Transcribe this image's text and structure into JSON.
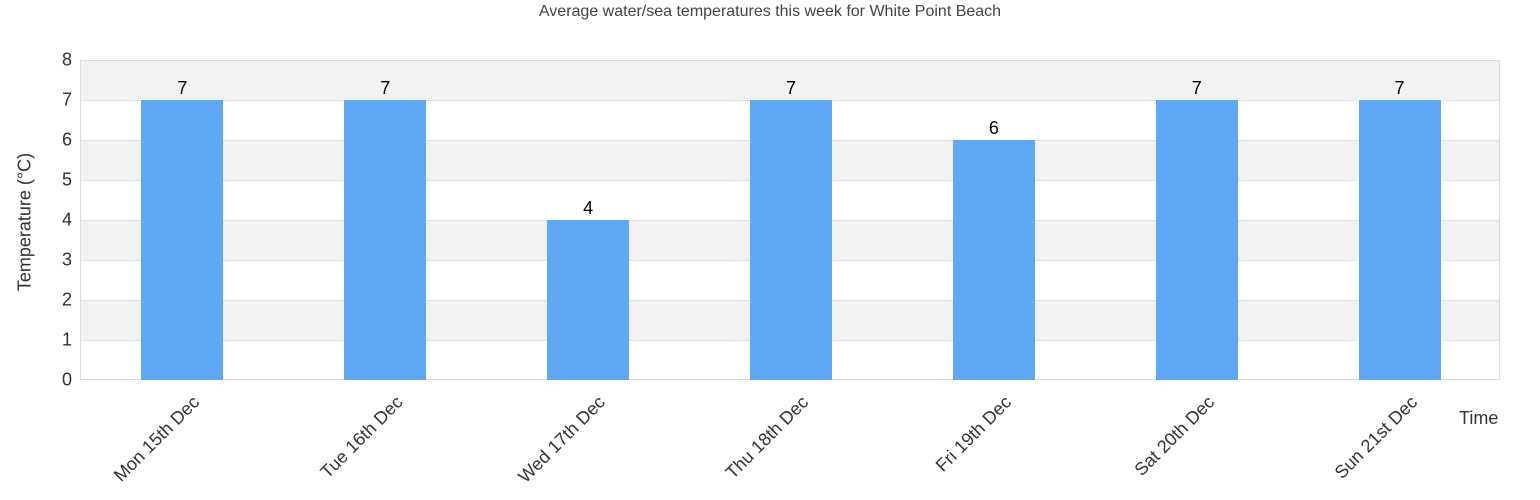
{
  "chart_data": {
    "type": "bar",
    "title": "Average water/sea temperatures this week for White Point Beach",
    "xlabel": "Time",
    "ylabel": "Temperature (°C)",
    "ylim": [
      0,
      8
    ],
    "yticks": [
      "0",
      "1",
      "2",
      "3",
      "4",
      "5",
      "6",
      "7",
      "8"
    ],
    "categories": [
      "Mon 15th Dec",
      "Tue 16th Dec",
      "Wed 17th Dec",
      "Thu 18th Dec",
      "Fri 19th Dec",
      "Sat 20th Dec",
      "Sun 21st Dec"
    ],
    "values": [
      7,
      7,
      4,
      7,
      6,
      7,
      7
    ],
    "value_labels": [
      "7",
      "7",
      "4",
      "7",
      "6",
      "7",
      "7"
    ],
    "bar_color": "#61a8f4",
    "grid": true,
    "legend": null
  }
}
